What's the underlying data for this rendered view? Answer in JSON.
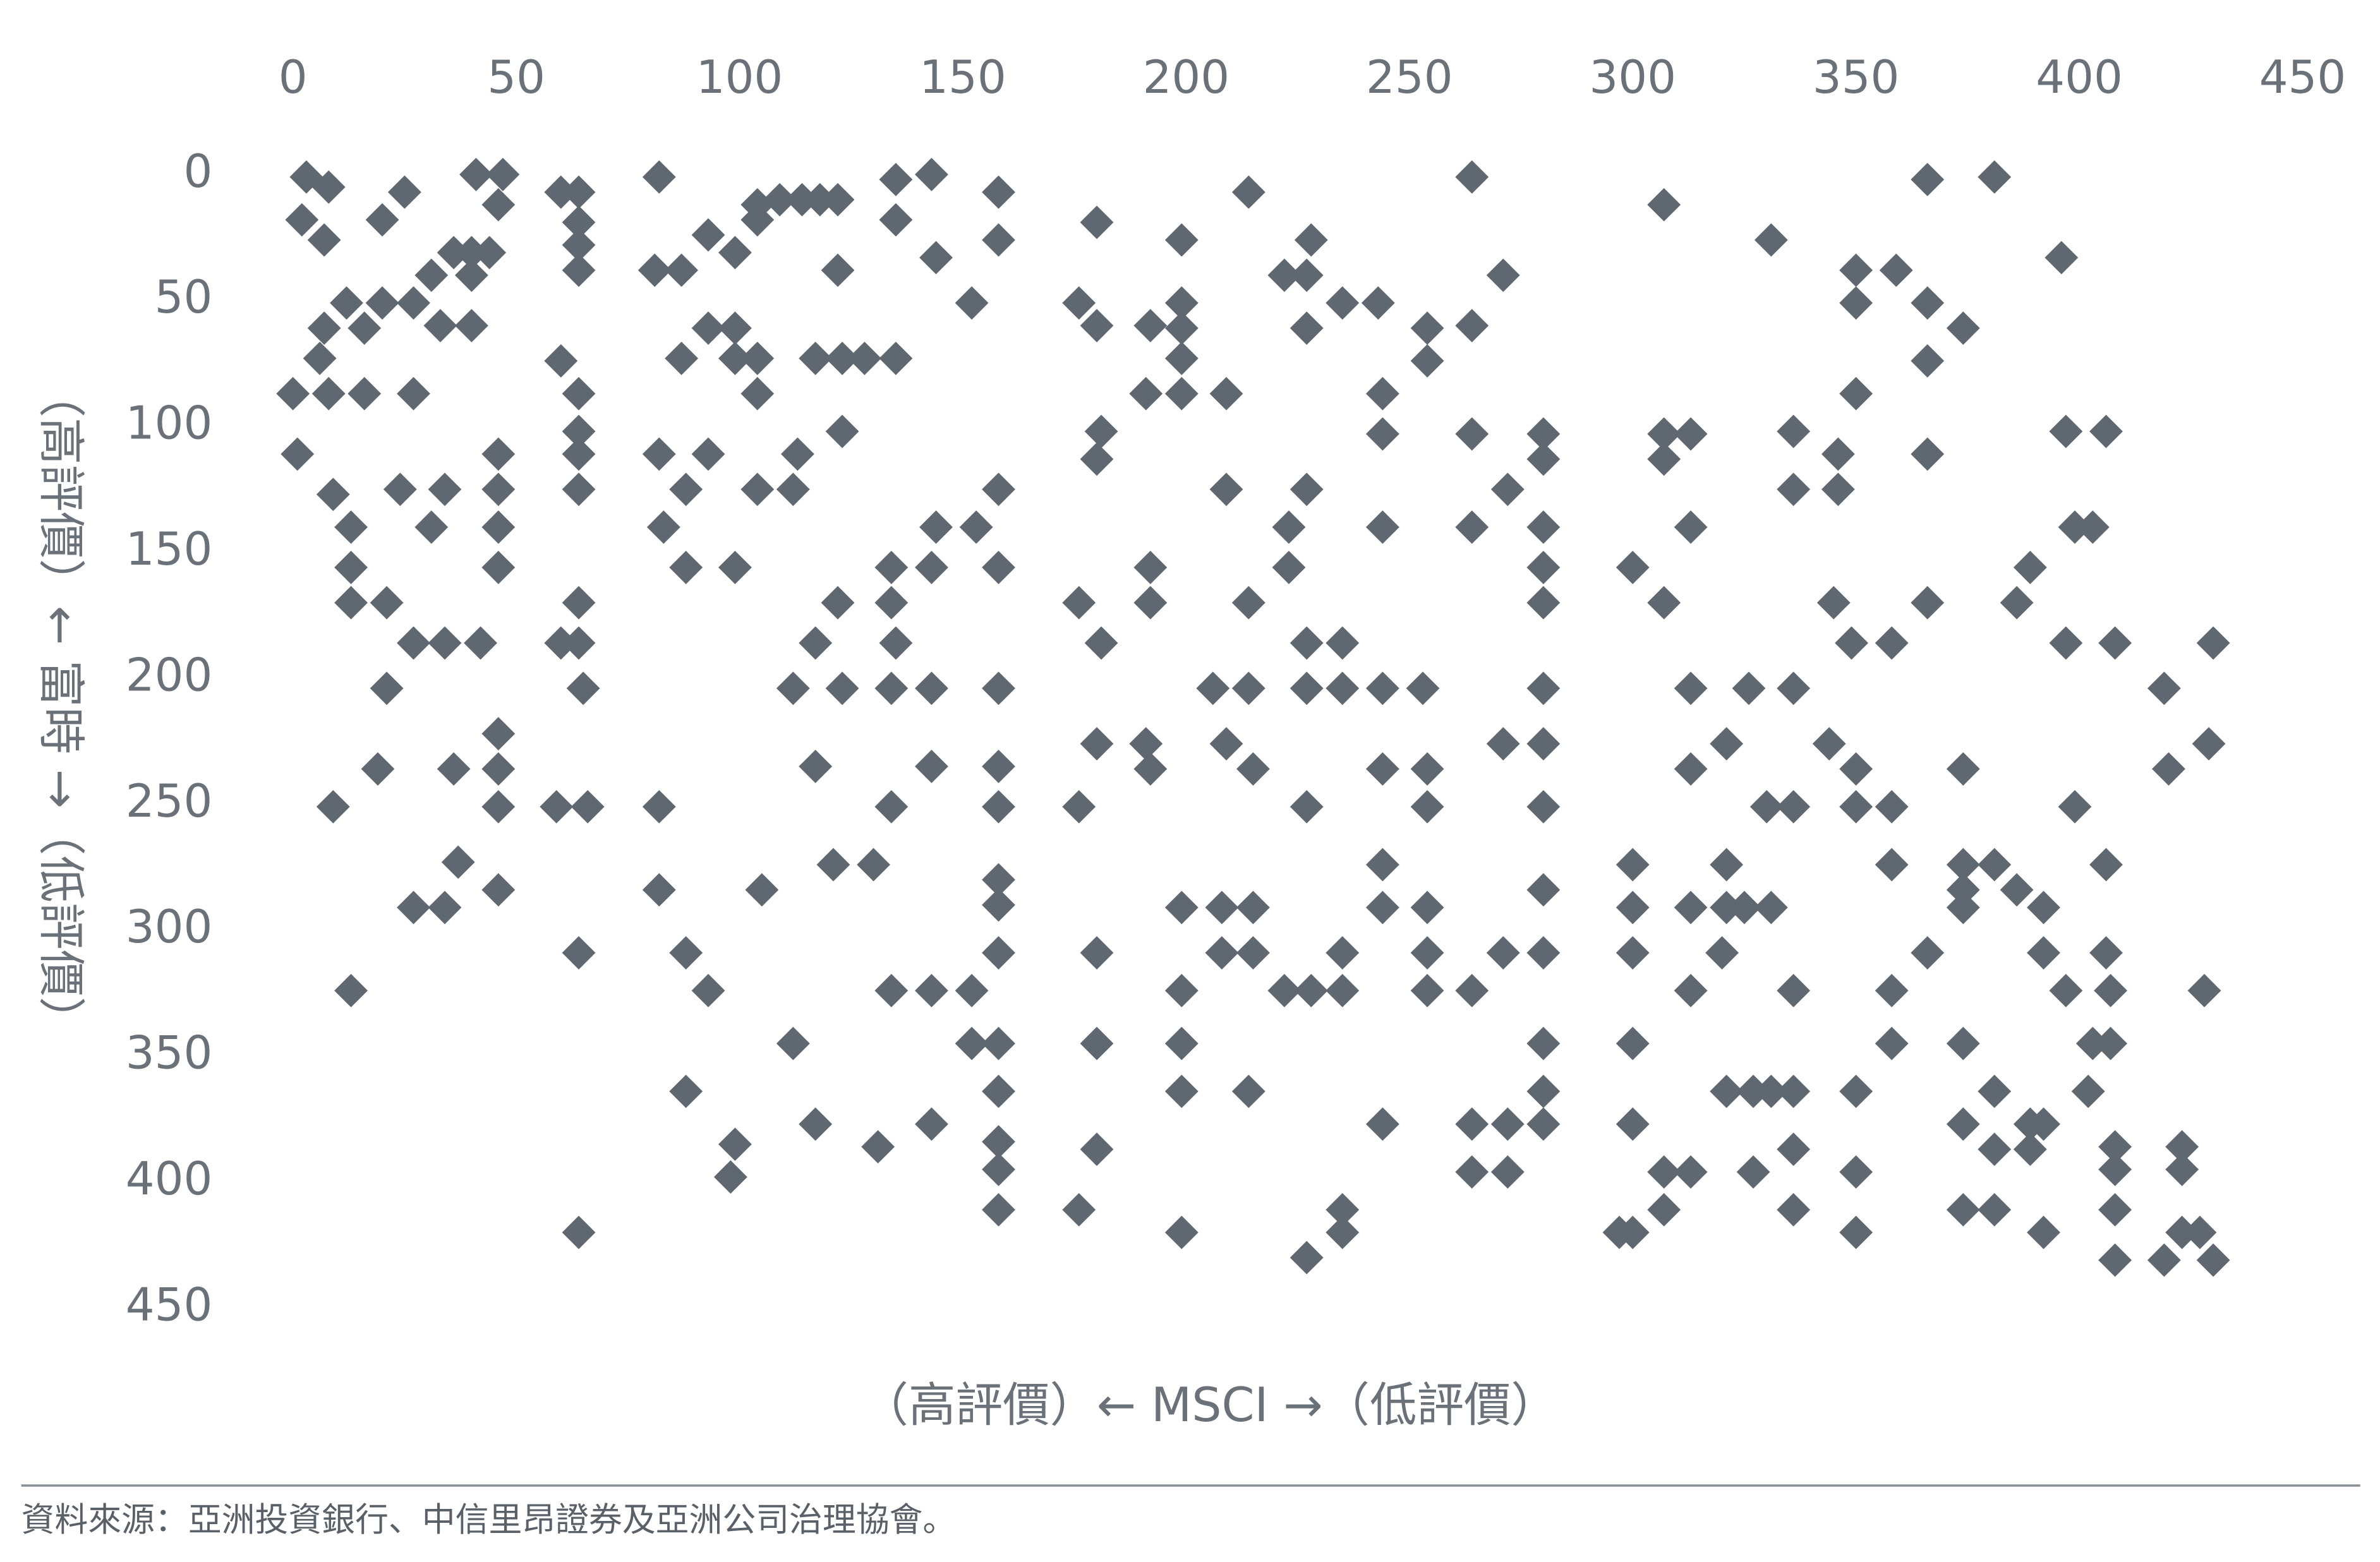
{
  "chart_data": {
    "type": "scatter",
    "x_label": "（高評價）← MSCI →（低評價）",
    "y_label": "（高評價）← 富時 →（低評價）",
    "source": "資料來源：亞洲投資銀行、中信里昂證券及亞洲公司治理協會。",
    "color": "#5f6870",
    "x_axis_position": "top",
    "y_inverted": true,
    "xlim": [
      0,
      450
    ],
    "xticks": [
      0,
      50,
      100,
      150,
      200,
      250,
      300,
      350,
      400,
      450
    ],
    "ylim": [
      0,
      450
    ],
    "yticks": [
      0,
      50,
      100,
      150,
      200,
      250,
      300,
      350,
      400,
      450
    ],
    "x": [
      3,
      8,
      2,
      7,
      0,
      1,
      6,
      7,
      8,
      9,
      9,
      16,
      12,
      16,
      13,
      13,
      13,
      13,
      20,
      25,
      20,
      21,
      21,
      19,
      24,
      27,
      27,
      27,
      31,
      36,
      33,
      31,
      34,
      34,
      27,
      34,
      37,
      36,
      40,
      40,
      41,
      40,
      42,
      47,
      46,
      44,
      46,
      46,
      46,
      46,
      46,
      46,
      46,
      46,
      60,
      64,
      64,
      64,
      64,
      60,
      64,
      64,
      64,
      64,
      60,
      64,
      64,
      65,
      59,
      66,
      64,
      64,
      82,
      81,
      87,
      87,
      93,
      99,
      93,
      99,
      99,
      104,
      104,
      104,
      109,
      114,
      118,
      122,
      104,
      122,
      82,
      93,
      88,
      83,
      88,
      99,
      104,
      112,
      113,
      123,
      117,
      123,
      128,
      135,
      82,
      82,
      88,
      93,
      88,
      99,
      98,
      105,
      112,
      117,
      122,
      123,
      117,
      121,
      130,
      135,
      134,
      134,
      134,
      134,
      143,
      143,
      143,
      144,
      153,
      158,
      158,
      158,
      158,
      158,
      158,
      158,
      158,
      152,
      144,
      135,
      135,
      143,
      158,
      158,
      134,
      143,
      152,
      152,
      158,
      158,
      158,
      158,
      158,
      143,
      131,
      117,
      112,
      176,
      176,
      176,
      180,
      180,
      181,
      180,
      181,
      180,
      180,
      180,
      180,
      176,
      192,
      192,
      191,
      192,
      199,
      199,
      199,
      199,
      192,
      191,
      199,
      209,
      209,
      214,
      228,
      222,
      227,
      235,
      227,
      243,
      244,
      244,
      254,
      254,
      264,
      264,
      271,
      227,
      223,
      223,
      214,
      206,
      214,
      209,
      215,
      227,
      235,
      227,
      235,
      244,
      253,
      199,
      208,
      215,
      208,
      215,
      199,
      199,
      199,
      214,
      222,
      228,
      235,
      235,
      244,
      244,
      244,
      244,
      254,
      254,
      254,
      254,
      254,
      227,
      264,
      264,
      264,
      264,
      264,
      272,
      272,
      271,
      271,
      272,
      280,
      280,
      280,
      280,
      280,
      280,
      280,
      280,
      280,
      280,
      280,
      280,
      280,
      244,
      235,
      235,
      227,
      199,
      307,
      307,
      313,
      307,
      313,
      300,
      307,
      313,
      313,
      321,
      326,
      336,
      331,
      336,
      336,
      346,
      346,
      350,
      350,
      350,
      359,
      366,
      374,
      366,
      366,
      366,
      381,
      396,
      397,
      406,
      399,
      403,
      389,
      386,
      397,
      408,
      430,
      419,
      429,
      420,
      399,
      406,
      406,
      407,
      403,
      407,
      402,
      408,
      408,
      408,
      408,
      419,
      423,
      427,
      430,
      423,
      423,
      428,
      345,
      344,
      350,
      350,
      358,
      358,
      349,
      330,
      336,
      366,
      374,
      358,
      358,
      358,
      350,
      350,
      350,
      336,
      336,
      336,
      336,
      327,
      331,
      321,
      320,
      327,
      313,
      313,
      307,
      300,
      300,
      300,
      300,
      300,
      297,
      300,
      307,
      321,
      313,
      321,
      325,
      331,
      366,
      374,
      374,
      374,
      381,
      386,
      392,
      392,
      397,
      374,
      374,
      381,
      381,
      389,
      392,
      389,
      374,
      381,
      392
    ],
    "values": [
      1,
      5,
      18,
      26,
      87,
      111,
      73,
      61,
      87,
      127,
      251,
      87,
      51,
      61,
      140,
      156,
      170,
      324,
      18,
      7,
      51,
      170,
      204,
      236,
      125,
      87,
      51,
      186,
      40,
      31,
      60,
      140,
      125,
      186,
      291,
      291,
      273,
      236,
      40,
      31,
      0,
      60,
      186,
      0,
      12,
      31,
      111,
      125,
      140,
      156,
      222,
      236,
      251,
      284,
      7,
      7,
      19,
      28,
      38,
      74,
      87,
      102,
      111,
      125,
      186,
      186,
      170,
      204,
      251,
      251,
      309,
      420,
      1,
      38,
      38,
      73,
      24,
      31,
      61,
      61,
      73,
      87,
      73,
      12,
      10,
      10,
      10,
      10,
      18,
      38,
      111,
      111,
      125,
      140,
      156,
      156,
      125,
      125,
      111,
      102,
      73,
      73,
      73,
      73,
      251,
      284,
      309,
      324,
      364,
      385,
      398,
      284,
      204,
      186,
      170,
      204,
      235,
      274,
      274,
      186,
      170,
      156,
      204,
      251,
      204,
      235,
      156,
      140,
      140,
      125,
      156,
      204,
      235,
      251,
      280,
      290,
      309,
      51,
      33,
      2,
      18,
      0,
      7,
      26,
      324,
      324,
      324,
      345,
      345,
      364,
      384,
      395,
      411,
      377,
      386,
      377,
      345,
      251,
      170,
      51,
      19,
      60,
      102,
      113,
      186,
      226,
      309,
      345,
      387,
      411,
      156,
      170,
      226,
      236,
      26,
      51,
      61,
      73,
      60,
      87,
      87,
      87,
      125,
      7,
      26,
      40,
      40,
      51,
      61,
      51,
      87,
      103,
      61,
      74,
      60,
      1,
      40,
      125,
      140,
      156,
      170,
      204,
      204,
      226,
      236,
      186,
      186,
      204,
      204,
      204,
      204,
      291,
      291,
      291,
      309,
      309,
      324,
      345,
      364,
      364,
      324,
      324,
      324,
      309,
      140,
      236,
      274,
      291,
      236,
      251,
      291,
      309,
      324,
      251,
      103,
      140,
      324,
      377,
      396,
      377,
      396,
      309,
      226,
      125,
      103,
      113,
      140,
      156,
      170,
      204,
      226,
      251,
      284,
      309,
      345,
      364,
      377,
      377,
      411,
      420,
      430,
      420,
      12,
      103,
      103,
      113,
      140,
      156,
      170,
      204,
      236,
      226,
      204,
      204,
      26,
      102,
      125,
      125,
      111,
      87,
      51,
      38,
      38,
      51,
      61,
      74,
      111,
      2,
      1,
      33,
      102,
      102,
      140,
      140,
      156,
      170,
      186,
      186,
      186,
      204,
      226,
      236,
      251,
      274,
      309,
      324,
      345,
      345,
      364,
      386,
      395,
      411,
      431,
      431,
      420,
      420,
      431,
      386,
      395,
      324,
      170,
      226,
      236,
      251,
      186,
      251,
      186,
      251,
      251,
      170,
      236,
      274,
      324,
      345,
      364,
      396,
      420,
      387,
      364,
      324,
      411,
      364,
      364,
      364,
      309,
      396,
      324,
      396,
      411,
      377,
      345,
      309,
      291,
      274,
      420,
      420,
      396,
      274,
      291,
      291,
      291,
      291,
      309,
      274,
      284,
      291,
      274,
      284,
      291,
      309,
      324,
      345,
      377,
      364,
      387,
      377,
      377,
      387,
      411,
      411,
      420
    ]
  }
}
